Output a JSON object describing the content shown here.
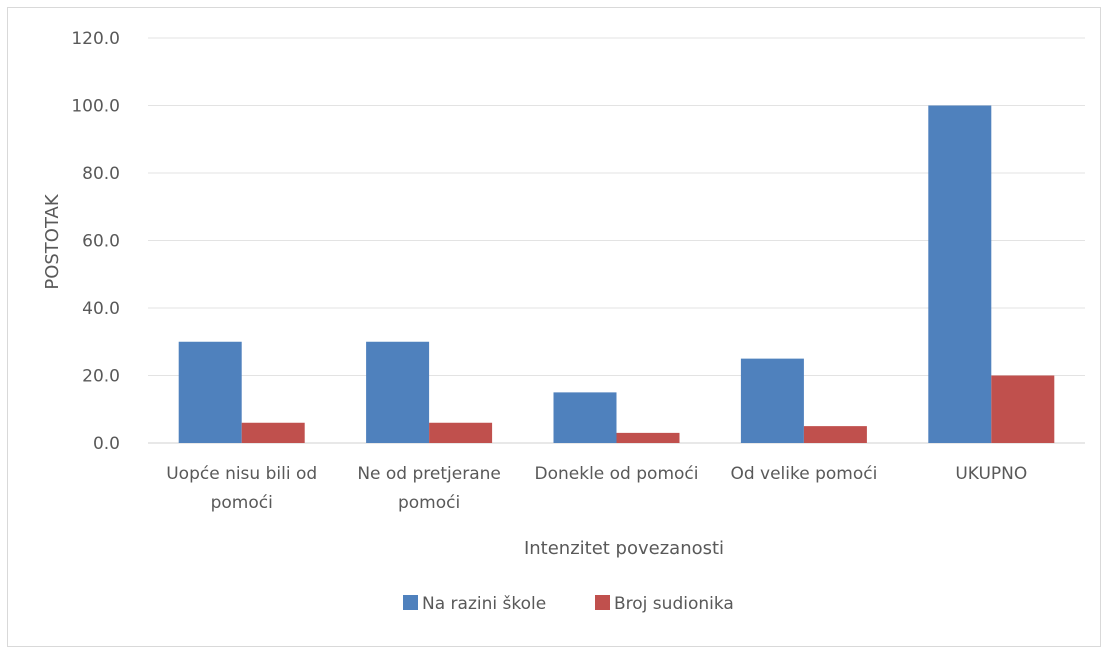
{
  "chart_data": {
    "type": "bar",
    "title": "",
    "xlabel": "Intenzitet povezanosti",
    "ylabel": "POSTOTAK",
    "ylim": [
      0,
      120
    ],
    "yticks": [
      "0.0",
      "20.0",
      "40.0",
      "60.0",
      "80.0",
      "100.0",
      "120.0"
    ],
    "categories": [
      [
        "Uopće nisu bili od",
        "pomoći"
      ],
      [
        "Ne od pretjerane",
        "pomoći"
      ],
      [
        "Donekle od pomoći"
      ],
      [
        "Od velike pomoći"
      ],
      [
        "UKUPNO"
      ]
    ],
    "series": [
      {
        "name": "Na razini škole",
        "color": "#4f81bd",
        "values": [
          30,
          30,
          15,
          25,
          100
        ]
      },
      {
        "name": "Broj sudionika",
        "color": "#c0504d",
        "values": [
          6,
          6,
          3,
          5,
          20
        ]
      }
    ],
    "grid": true,
    "legend_position": "bottom"
  }
}
